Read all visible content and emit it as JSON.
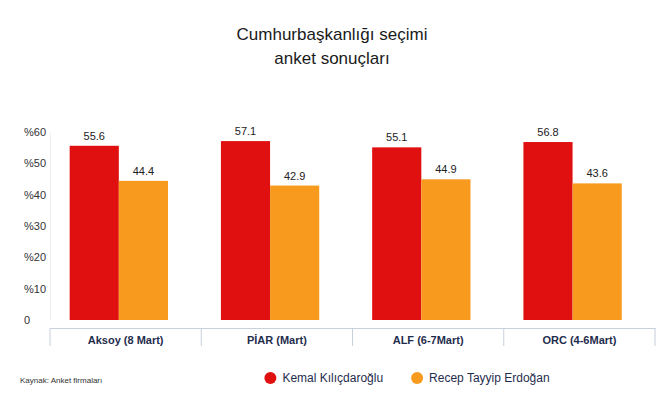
{
  "chart_data": {
    "type": "bar",
    "title": "Cumhurbaşkanlığı seçimi\nanket sonuçları",
    "source": "Kaynak: Anket firmaları",
    "categories": [
      "Aksoy (8 Mart)",
      "PİAR (Mart)",
      "ALF (6-7Mart)",
      "ORC (4-6Mart)"
    ],
    "series": [
      {
        "name": "Kemal Kılıçdaroğlu",
        "color": "#e01010",
        "values": [
          55.6,
          57.1,
          55.1,
          56.8
        ]
      },
      {
        "name": "Recep Tayyip Erdoğan",
        "color": "#f79a1e",
        "values": [
          44.4,
          42.9,
          44.9,
          43.6
        ]
      }
    ],
    "ylim": [
      0,
      60
    ],
    "yticks": [
      0,
      {
        "value": 10,
        "label": "%10"
      },
      {
        "value": 20,
        "label": "%20"
      },
      {
        "value": 30,
        "label": "%30"
      },
      {
        "value": 40,
        "label": "%40"
      },
      {
        "value": 50,
        "label": "%50"
      },
      {
        "value": 60,
        "label": "%60"
      }
    ],
    "grid": false,
    "legend": "bottom",
    "data_labels": true
  }
}
